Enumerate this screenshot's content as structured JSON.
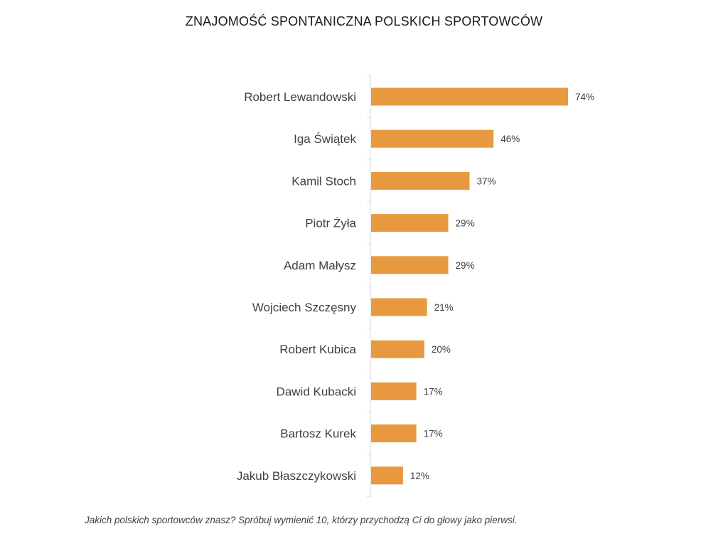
{
  "chart_data": {
    "type": "bar",
    "orientation": "horizontal",
    "title": "ZNAJOMOŚĆ SPONTANICZNA POLSKICH SPORTOWCÓW",
    "categories": [
      "Robert Lewandowski",
      "Iga Świątek",
      "Kamil Stoch",
      "Piotr Żyła",
      "Adam Małysz",
      "Wojciech Szczęsny",
      "Robert Kubica",
      "Dawid Kubacki",
      "Bartosz Kurek",
      "Jakub Błaszczykowski"
    ],
    "values": [
      74,
      46,
      37,
      29,
      29,
      21,
      20,
      17,
      17,
      12
    ],
    "value_labels": [
      "74%",
      "46%",
      "37%",
      "29%",
      "29%",
      "21%",
      "20%",
      "17%",
      "17%",
      "12%"
    ],
    "xlabel": "",
    "ylabel": "",
    "xlim": [
      0,
      100
    ],
    "grid": false,
    "legend": "none",
    "bar_color": "#E8993F"
  },
  "footnote": "Jakich polskich sportowców znasz? Spróbuj wymienić 10, którzy przychodzą Ci do głowy jako pierwsi."
}
